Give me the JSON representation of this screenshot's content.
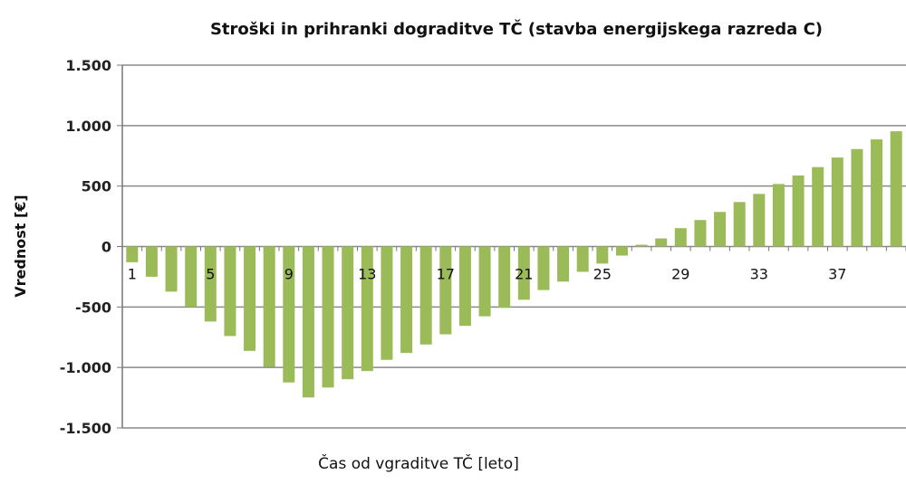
{
  "chart_data": {
    "type": "bar",
    "title": "Stroški in prihranki dograditve TČ (stavba energijskega razreda C)",
    "xlabel": "Čas od vgraditve TČ [leto]",
    "ylabel": "Vrednost [€]",
    "ylim": [
      -1500,
      1500
    ],
    "yticks": [
      1500,
      1000,
      500,
      0,
      -500,
      -1000,
      -1500
    ],
    "ytick_labels": [
      "1.500",
      "1.000",
      "500",
      "0",
      "-500",
      "-1.000",
      "-1.500"
    ],
    "xtick_labels": [
      "1",
      "5",
      "9",
      "13",
      "17",
      "21",
      "25",
      "29",
      "33",
      "37"
    ],
    "grid": true,
    "legend": "none",
    "color": "#9bbb59",
    "categories": [
      1,
      2,
      3,
      4,
      5,
      6,
      7,
      8,
      9,
      10,
      11,
      12,
      13,
      14,
      15,
      16,
      17,
      18,
      19,
      20,
      21,
      22,
      23,
      24,
      25,
      26,
      27,
      28,
      29,
      30,
      31,
      32,
      33,
      34,
      35,
      36,
      37,
      38,
      39,
      40
    ],
    "values": [
      -130,
      -250,
      -373,
      -500,
      -620,
      -740,
      -863,
      -995,
      -1124,
      -1248,
      -1166,
      -1097,
      -1030,
      -937,
      -880,
      -810,
      -726,
      -656,
      -577,
      -507,
      -440,
      -360,
      -290,
      -209,
      -141,
      -75,
      15,
      67,
      152,
      219,
      286,
      368,
      435,
      517,
      587,
      657,
      736,
      806,
      886,
      953
    ]
  }
}
